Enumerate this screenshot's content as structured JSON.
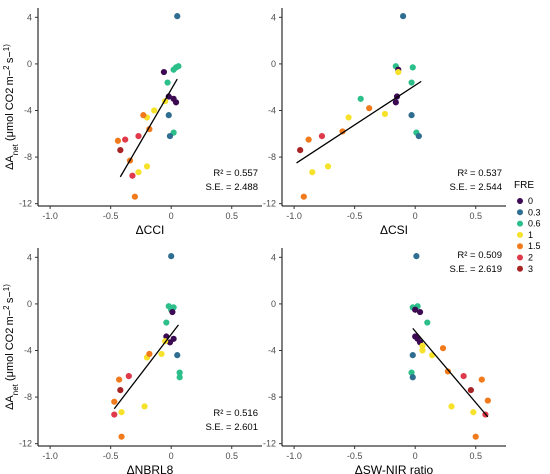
{
  "legend": {
    "title": "FRE",
    "items": [
      {
        "label": "0",
        "color": "#3b0a52"
      },
      {
        "label": "0.3",
        "color": "#2f6e91"
      },
      {
        "label": "0.6",
        "color": "#2cbf8a"
      },
      {
        "label": "1",
        "color": "#f7e22b"
      },
      {
        "label": "1.5",
        "color": "#f07a1c"
      },
      {
        "label": "2",
        "color": "#e03a4a"
      },
      {
        "label": "3",
        "color": "#a82424"
      }
    ]
  },
  "ylabel": "ΔAnet (μmol CO2 m−2 s−1)",
  "chart_data": [
    {
      "type": "scatter",
      "xlabel": "ΔCCI",
      "xlim": [
        -1.1,
        0.75
      ],
      "ylim": [
        -12.2,
        4.8
      ],
      "xticks": [
        -1.0,
        -0.5,
        0,
        0.5
      ],
      "xtick_labels": [
        "-1.0",
        "-0.5",
        "0",
        "0.5"
      ],
      "yticks": [
        4,
        0,
        -4,
        -8,
        -12
      ],
      "ytick_labels": [
        "4",
        "0",
        "-4",
        "-8",
        "-12"
      ],
      "stats": {
        "r2": "R² = 0.557",
        "se": "S.E. = 2.488"
      },
      "fit": [
        [
          -0.42,
          -9.7
        ],
        [
          0.05,
          -1.3
        ]
      ],
      "points": [
        {
          "x": 0.05,
          "y": 4.1,
          "fre": "0.3"
        },
        {
          "x": 0.04,
          "y": -0.3,
          "fre": "0.6"
        },
        {
          "x": 0.06,
          "y": -0.2,
          "fre": "0.6"
        },
        {
          "x": 0.02,
          "y": -0.5,
          "fre": "0.6"
        },
        {
          "x": -0.06,
          "y": -0.7,
          "fre": "0"
        },
        {
          "x": -0.03,
          "y": -1.6,
          "fre": "0.6"
        },
        {
          "x": -0.02,
          "y": -2.8,
          "fre": "0"
        },
        {
          "x": 0.02,
          "y": -3.0,
          "fre": "0"
        },
        {
          "x": 0.04,
          "y": -3.3,
          "fre": "0"
        },
        {
          "x": -0.05,
          "y": -3.2,
          "fre": "1"
        },
        {
          "x": -0.02,
          "y": -4.4,
          "fre": "0.3"
        },
        {
          "x": -0.14,
          "y": -4.0,
          "fre": "1"
        },
        {
          "x": -0.2,
          "y": -4.6,
          "fre": "1"
        },
        {
          "x": -0.23,
          "y": -4.4,
          "fre": "1.5"
        },
        {
          "x": -0.18,
          "y": -5.6,
          "fre": "1.5"
        },
        {
          "x": 0.02,
          "y": -5.9,
          "fre": "0.6"
        },
        {
          "x": -0.01,
          "y": -6.2,
          "fre": "0.3"
        },
        {
          "x": -0.27,
          "y": -6.2,
          "fre": "2"
        },
        {
          "x": -0.44,
          "y": -6.6,
          "fre": "1.5"
        },
        {
          "x": -0.38,
          "y": -6.5,
          "fre": "2"
        },
        {
          "x": -0.42,
          "y": -7.4,
          "fre": "3"
        },
        {
          "x": -0.34,
          "y": -8.3,
          "fre": "1.5"
        },
        {
          "x": -0.2,
          "y": -8.8,
          "fre": "1"
        },
        {
          "x": -0.27,
          "y": -9.3,
          "fre": "1"
        },
        {
          "x": -0.32,
          "y": -9.6,
          "fre": "2"
        },
        {
          "x": -0.3,
          "y": -11.4,
          "fre": "1.5"
        }
      ]
    },
    {
      "type": "scatter",
      "xlabel": "ΔCSI",
      "xlim": [
        -1.1,
        0.75
      ],
      "ylim": [
        -12.2,
        4.8
      ],
      "xticks": [
        -1.0,
        -0.5,
        0,
        0.5
      ],
      "xtick_labels": [
        "-1.0",
        "-0.5",
        "0",
        "0.5"
      ],
      "yticks": [
        4,
        0,
        -4,
        -8,
        -12
      ],
      "ytick_labels": [
        "4",
        "0",
        "-4",
        "-8",
        "-12"
      ],
      "stats": {
        "r2": "R² = 0.537",
        "se": "S.E. = 2.544"
      },
      "fit": [
        [
          -0.98,
          -8.5
        ],
        [
          0.05,
          -1.5
        ]
      ],
      "points": [
        {
          "x": -0.1,
          "y": 4.1,
          "fre": "0.3"
        },
        {
          "x": -0.02,
          "y": -0.3,
          "fre": "0.6"
        },
        {
          "x": -0.16,
          "y": -0.2,
          "fre": "0.6"
        },
        {
          "x": -0.14,
          "y": -0.5,
          "fre": "0"
        },
        {
          "x": -0.14,
          "y": -0.7,
          "fre": "1"
        },
        {
          "x": -0.03,
          "y": -1.6,
          "fre": "0.6"
        },
        {
          "x": -0.15,
          "y": -2.8,
          "fre": "0"
        },
        {
          "x": -0.16,
          "y": -3.3,
          "fre": "0"
        },
        {
          "x": -0.45,
          "y": -3.0,
          "fre": "0.6"
        },
        {
          "x": -0.38,
          "y": -3.8,
          "fre": "1.5"
        },
        {
          "x": -0.03,
          "y": -4.4,
          "fre": "0.3"
        },
        {
          "x": -0.25,
          "y": -4.3,
          "fre": "1"
        },
        {
          "x": -0.55,
          "y": -4.6,
          "fre": "1"
        },
        {
          "x": -0.6,
          "y": -5.8,
          "fre": "1.5"
        },
        {
          "x": 0.01,
          "y": -5.9,
          "fre": "0.6"
        },
        {
          "x": 0.03,
          "y": -6.2,
          "fre": "0.3"
        },
        {
          "x": -0.77,
          "y": -6.2,
          "fre": "2"
        },
        {
          "x": -0.88,
          "y": -6.5,
          "fre": "1.5"
        },
        {
          "x": -0.95,
          "y": -7.4,
          "fre": "3"
        },
        {
          "x": -0.72,
          "y": -8.8,
          "fre": "1"
        },
        {
          "x": -0.85,
          "y": -9.3,
          "fre": "1"
        },
        {
          "x": -0.92,
          "y": -11.4,
          "fre": "1.5"
        }
      ]
    },
    {
      "type": "scatter",
      "xlabel": "ΔNBRL8",
      "xlim": [
        -1.1,
        0.75
      ],
      "ylim": [
        -12.2,
        4.8
      ],
      "xticks": [
        -1.0,
        -0.5,
        0,
        0.5
      ],
      "xtick_labels": [
        "-1.0",
        "-0.5",
        "0",
        "0.5"
      ],
      "yticks": [
        4,
        0,
        -4,
        -8,
        -12
      ],
      "ytick_labels": [
        "4",
        "0",
        "-4",
        "-8",
        "-12"
      ],
      "stats": {
        "r2": "R² = 0.516",
        "se": "S.E. = 2.601"
      },
      "fit": [
        [
          -0.47,
          -9.0
        ],
        [
          0.06,
          -1.8
        ]
      ],
      "points": [
        {
          "x": 0.0,
          "y": 4.1,
          "fre": "0.3"
        },
        {
          "x": 0.02,
          "y": -0.3,
          "fre": "0.6"
        },
        {
          "x": -0.02,
          "y": -0.2,
          "fre": "0.6"
        },
        {
          "x": 0.0,
          "y": -0.5,
          "fre": "0.6"
        },
        {
          "x": 0.01,
          "y": -0.7,
          "fre": "0"
        },
        {
          "x": -0.04,
          "y": -1.6,
          "fre": "0.6"
        },
        {
          "x": -0.04,
          "y": -2.8,
          "fre": "0"
        },
        {
          "x": 0.02,
          "y": -3.0,
          "fre": "0"
        },
        {
          "x": -0.01,
          "y": -3.3,
          "fre": "0"
        },
        {
          "x": -0.05,
          "y": -3.2,
          "fre": "1"
        },
        {
          "x": 0.05,
          "y": -4.4,
          "fre": "0.3"
        },
        {
          "x": -0.08,
          "y": -4.3,
          "fre": "1"
        },
        {
          "x": -0.2,
          "y": -4.6,
          "fre": "1"
        },
        {
          "x": -0.18,
          "y": -4.3,
          "fre": "1.5"
        },
        {
          "x": 0.07,
          "y": -5.9,
          "fre": "0.6"
        },
        {
          "x": 0.07,
          "y": -6.3,
          "fre": "0.6"
        },
        {
          "x": -0.35,
          "y": -6.2,
          "fre": "2"
        },
        {
          "x": -0.43,
          "y": -6.5,
          "fre": "1.5"
        },
        {
          "x": -0.42,
          "y": -7.4,
          "fre": "3"
        },
        {
          "x": -0.47,
          "y": -8.4,
          "fre": "1.5"
        },
        {
          "x": -0.22,
          "y": -8.8,
          "fre": "1"
        },
        {
          "x": -0.41,
          "y": -9.3,
          "fre": "1"
        },
        {
          "x": -0.47,
          "y": -9.5,
          "fre": "2"
        },
        {
          "x": -0.41,
          "y": -11.4,
          "fre": "1.5"
        }
      ]
    },
    {
      "type": "scatter",
      "xlabel": "ΔSW-NIR ratio",
      "xlim": [
        -1.1,
        0.75
      ],
      "ylim": [
        -12.2,
        4.8
      ],
      "xticks": [
        -1.0,
        -0.5,
        0,
        0.5
      ],
      "xtick_labels": [
        "-1.0",
        "-0.5",
        "0",
        "0.5"
      ],
      "yticks": [
        4,
        0,
        -4,
        -8,
        -12
      ],
      "ytick_labels": [
        "4",
        "0",
        "-4",
        "-8",
        "-12"
      ],
      "stats": {
        "r2": "R² = 0.509",
        "se": "S.E. = 2.619"
      },
      "fit": [
        [
          -0.02,
          -2.1
        ],
        [
          0.6,
          -9.7
        ]
      ],
      "points": [
        {
          "x": 0.01,
          "y": 4.1,
          "fre": "0.3"
        },
        {
          "x": -0.02,
          "y": -0.3,
          "fre": "0.6"
        },
        {
          "x": 0.02,
          "y": -0.2,
          "fre": "0.6"
        },
        {
          "x": 0.0,
          "y": -0.5,
          "fre": "0"
        },
        {
          "x": 0.04,
          "y": -0.7,
          "fre": "0"
        },
        {
          "x": 0.1,
          "y": -1.6,
          "fre": "0.6"
        },
        {
          "x": 0.0,
          "y": -2.8,
          "fre": "0"
        },
        {
          "x": 0.02,
          "y": -3.0,
          "fre": "0"
        },
        {
          "x": 0.04,
          "y": -3.3,
          "fre": "0"
        },
        {
          "x": 0.06,
          "y": -3.6,
          "fre": "1"
        },
        {
          "x": 0.23,
          "y": -3.8,
          "fre": "1.5"
        },
        {
          "x": -0.02,
          "y": -4.4,
          "fre": "0.3"
        },
        {
          "x": 0.14,
          "y": -4.4,
          "fre": "1"
        },
        {
          "x": 0.06,
          "y": -4.0,
          "fre": "1"
        },
        {
          "x": 0.27,
          "y": -5.8,
          "fre": "1.5"
        },
        {
          "x": -0.03,
          "y": -5.9,
          "fre": "0.6"
        },
        {
          "x": -0.02,
          "y": -6.3,
          "fre": "0.3"
        },
        {
          "x": 0.4,
          "y": -6.2,
          "fre": "2"
        },
        {
          "x": 0.55,
          "y": -6.5,
          "fre": "1.5"
        },
        {
          "x": 0.46,
          "y": -7.4,
          "fre": "3"
        },
        {
          "x": 0.6,
          "y": -8.3,
          "fre": "1.5"
        },
        {
          "x": 0.3,
          "y": -8.8,
          "fre": "1"
        },
        {
          "x": 0.48,
          "y": -9.3,
          "fre": "1"
        },
        {
          "x": 0.58,
          "y": -9.5,
          "fre": "2"
        },
        {
          "x": 0.5,
          "y": -11.4,
          "fre": "1.5"
        }
      ]
    }
  ]
}
